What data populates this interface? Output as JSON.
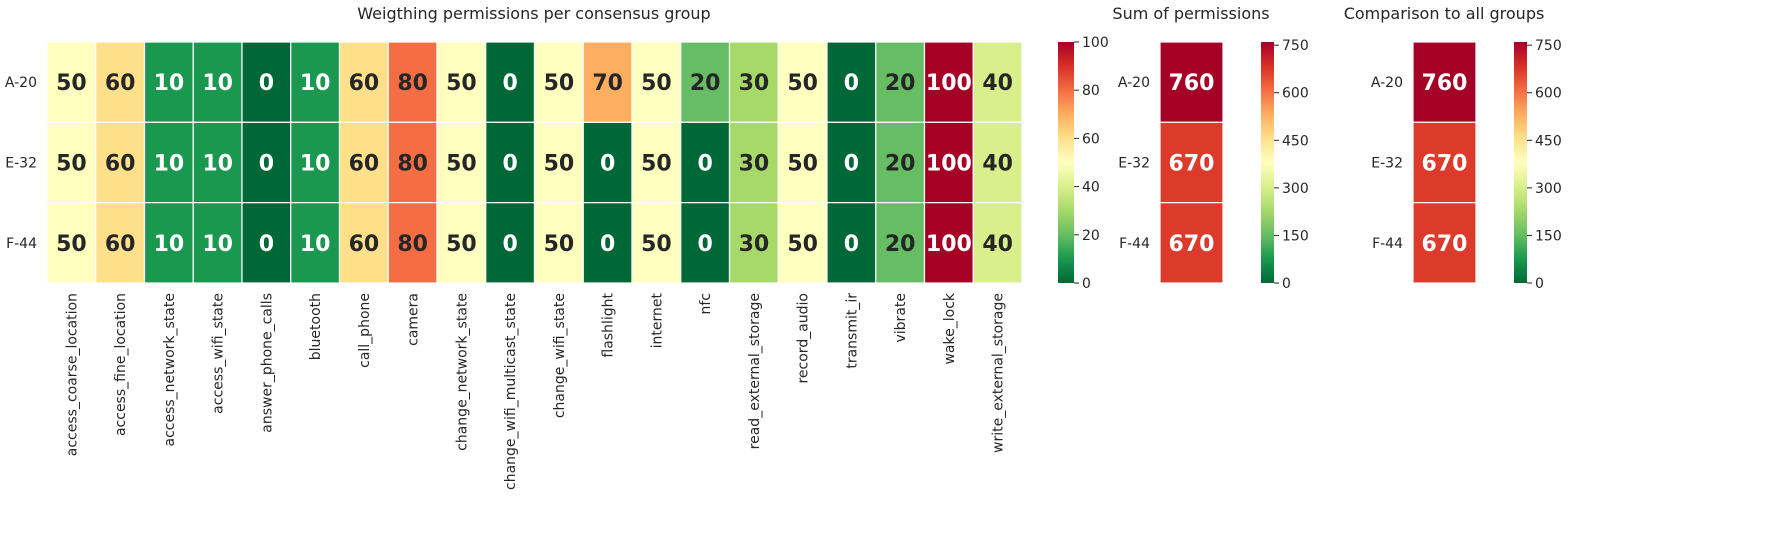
{
  "chart_data": [
    {
      "type": "heatmap",
      "title": "Weigthing permissions per consensus group",
      "rows": [
        "A-20",
        "E-32",
        "F-44"
      ],
      "columns": [
        "access_coarse_location",
        "access_fine_location",
        "access_network_state",
        "access_wifi_state",
        "answer_phone_calls",
        "bluetooth",
        "call_phone",
        "camera",
        "change_network_state",
        "change_wifi_multicast_state",
        "change_wifi_state",
        "flashlight",
        "internet",
        "nfc",
        "read_external_storage",
        "record_audio",
        "transmit_ir",
        "vibrate",
        "wake_lock",
        "write_external_storage"
      ],
      "values": [
        [
          50,
          60,
          10,
          10,
          0,
          10,
          60,
          80,
          50,
          0,
          50,
          70,
          50,
          20,
          30,
          50,
          0,
          20,
          100,
          40
        ],
        [
          50,
          60,
          10,
          10,
          0,
          10,
          60,
          80,
          50,
          0,
          50,
          0,
          50,
          0,
          30,
          50,
          0,
          20,
          100,
          40
        ],
        [
          50,
          60,
          10,
          10,
          0,
          10,
          60,
          80,
          50,
          0,
          50,
          0,
          50,
          0,
          30,
          50,
          0,
          20,
          100,
          40
        ]
      ],
      "colormap": "RdYlGn_r",
      "vmin": 0,
      "vmax": 100,
      "colorbar_ticks": [
        "0",
        "20",
        "40",
        "60",
        "80",
        "100"
      ]
    },
    {
      "type": "heatmap",
      "title": "Sum of permissions",
      "rows": [
        "A-20",
        "E-32",
        "F-44"
      ],
      "columns": [],
      "values": [
        [
          760
        ],
        [
          670
        ],
        [
          670
        ]
      ],
      "colormap": "RdYlGn_r",
      "vmin": 0,
      "vmax": 760,
      "colorbar_ticks": [
        "0",
        "150",
        "300",
        "450",
        "600",
        "750"
      ]
    },
    {
      "type": "heatmap",
      "title": "Comparison to all groups",
      "rows": [
        "A-20",
        "E-32",
        "F-44"
      ],
      "columns": [],
      "values": [
        [
          760
        ],
        [
          670
        ],
        [
          670
        ]
      ],
      "colormap": "RdYlGn_r",
      "vmin": 0,
      "vmax": 760,
      "colorbar_ticks": [
        "0",
        "150",
        "300",
        "450",
        "600",
        "750"
      ]
    }
  ]
}
